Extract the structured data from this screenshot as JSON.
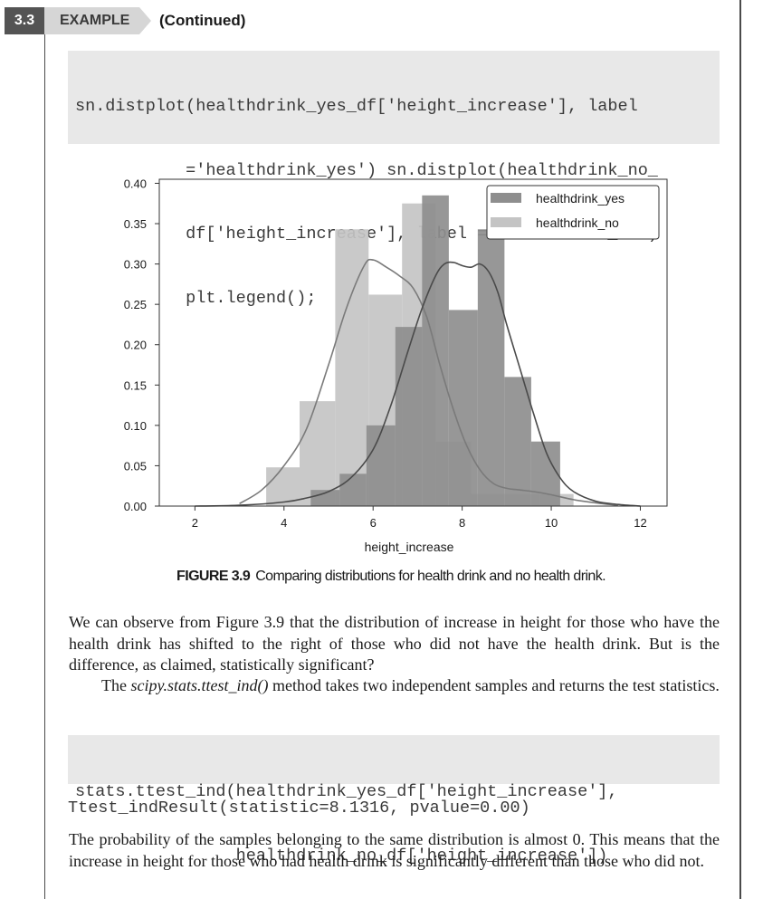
{
  "header": {
    "section_number": "3.3",
    "example_label": "EXAMPLE",
    "continued_label": "(Continued)"
  },
  "code_block_1": {
    "lines": [
      "sn.distplot(healthdrink_yes_df['height_increase'], label",
      "           ='healthdrink_yes') sn.distplot(healthdrink_no_",
      "           df['height_increase'], label ='healthdrink_no')",
      "           plt.legend();"
    ]
  },
  "figure": {
    "caption_number": "FIGURE 3.9",
    "caption_text": "Comparing distributions for health drink and no health drink."
  },
  "chart_data": {
    "type": "bar",
    "xlabel": "height_increase",
    "ylabel": "",
    "xlim": [
      1.2,
      12.6
    ],
    "ylim": [
      0,
      0.405
    ],
    "xticks": [
      2,
      4,
      6,
      8,
      10,
      12
    ],
    "yticks": [
      0.0,
      0.05,
      0.1,
      0.15,
      0.2,
      0.25,
      0.3,
      0.35,
      0.4
    ],
    "ytick_labels": [
      "0.00",
      "0.05",
      "0.10",
      "0.15",
      "0.20",
      "0.25",
      "0.30",
      "0.35",
      "0.40"
    ],
    "legend_position": "top-right",
    "series": [
      {
        "name": "healthdrink_no",
        "color": "#c4c4c4",
        "bins": [
          {
            "x0": 3.6,
            "x1": 4.35,
            "value": 0.048
          },
          {
            "x0": 4.35,
            "x1": 5.15,
            "value": 0.13
          },
          {
            "x0": 5.15,
            "x1": 5.9,
            "value": 0.343
          },
          {
            "x0": 5.9,
            "x1": 6.65,
            "value": 0.262
          },
          {
            "x0": 6.65,
            "x1": 7.4,
            "value": 0.375
          },
          {
            "x0": 7.4,
            "x1": 8.2,
            "value": 0.08
          },
          {
            "x0": 8.2,
            "x1": 8.95,
            "value": 0.015
          },
          {
            "x0": 8.95,
            "x1": 9.75,
            "value": 0.015
          },
          {
            "x0": 9.75,
            "x1": 10.5,
            "value": 0.015
          }
        ],
        "kde": [
          [
            3.0,
            0.003
          ],
          [
            3.5,
            0.02
          ],
          [
            4.0,
            0.05
          ],
          [
            4.5,
            0.095
          ],
          [
            5.0,
            0.175
          ],
          [
            5.4,
            0.245
          ],
          [
            5.8,
            0.298
          ],
          [
            6.0,
            0.305
          ],
          [
            6.3,
            0.296
          ],
          [
            6.6,
            0.285
          ],
          [
            6.9,
            0.27
          ],
          [
            7.2,
            0.235
          ],
          [
            7.5,
            0.175
          ],
          [
            7.8,
            0.12
          ],
          [
            8.1,
            0.075
          ],
          [
            8.4,
            0.045
          ],
          [
            8.7,
            0.028
          ],
          [
            9.0,
            0.022
          ],
          [
            9.3,
            0.02
          ],
          [
            9.6,
            0.018
          ],
          [
            10.0,
            0.014
          ],
          [
            10.5,
            0.008
          ],
          [
            11.0,
            0.004
          ],
          [
            11.5,
            0.001
          ]
        ]
      },
      {
        "name": "healthdrink_yes",
        "color": "#8e8e8e",
        "bins": [
          {
            "x0": 4.6,
            "x1": 5.25,
            "value": 0.02
          },
          {
            "x0": 5.25,
            "x1": 5.85,
            "value": 0.04
          },
          {
            "x0": 5.85,
            "x1": 6.5,
            "value": 0.1
          },
          {
            "x0": 6.5,
            "x1": 7.1,
            "value": 0.222
          },
          {
            "x0": 7.1,
            "x1": 7.7,
            "value": 0.385
          },
          {
            "x0": 7.7,
            "x1": 8.35,
            "value": 0.243
          },
          {
            "x0": 8.35,
            "x1": 8.95,
            "value": 0.343
          },
          {
            "x0": 8.95,
            "x1": 9.55,
            "value": 0.16
          },
          {
            "x0": 9.55,
            "x1": 10.2,
            "value": 0.08
          }
        ],
        "kde": [
          [
            2.0,
            0.0
          ],
          [
            3.0,
            0.001
          ],
          [
            4.0,
            0.005
          ],
          [
            4.5,
            0.01
          ],
          [
            5.0,
            0.018
          ],
          [
            5.5,
            0.035
          ],
          [
            6.0,
            0.07
          ],
          [
            6.4,
            0.125
          ],
          [
            6.8,
            0.195
          ],
          [
            7.1,
            0.245
          ],
          [
            7.4,
            0.285
          ],
          [
            7.6,
            0.3
          ],
          [
            7.8,
            0.302
          ],
          [
            8.0,
            0.298
          ],
          [
            8.2,
            0.296
          ],
          [
            8.4,
            0.3
          ],
          [
            8.6,
            0.29
          ],
          [
            8.8,
            0.265
          ],
          [
            9.0,
            0.225
          ],
          [
            9.3,
            0.17
          ],
          [
            9.6,
            0.115
          ],
          [
            9.9,
            0.065
          ],
          [
            10.2,
            0.035
          ],
          [
            10.5,
            0.018
          ],
          [
            11.0,
            0.006
          ],
          [
            11.5,
            0.002
          ],
          [
            12.0,
            0.0
          ]
        ]
      }
    ]
  },
  "paragraph_1": "We can observe from Figure 3.9 that the distribution of increase in height for those who have the health drink has shifted to the right of those who did not have the health drink. But is the difference, as claimed, statistically significant?",
  "paragraph_2": {
    "before": "The ",
    "method": "scipy.stats.ttest_ind()",
    "after": " method takes two independent samples and returns the test statistics."
  },
  "code_block_2": {
    "lines": [
      "stats.ttest_ind(healthdrink_yes_df['height_increase'],",
      "                healthdrink_no_df['height_increase'])"
    ]
  },
  "result_line": "Ttest_indResult(statistic=8.1316, pvalue=0.00)",
  "paragraph_3": "The probability of the samples belonging to the same distribution is almost 0. This means that the increase in height for those who had health drink is significantly different than those who did not."
}
